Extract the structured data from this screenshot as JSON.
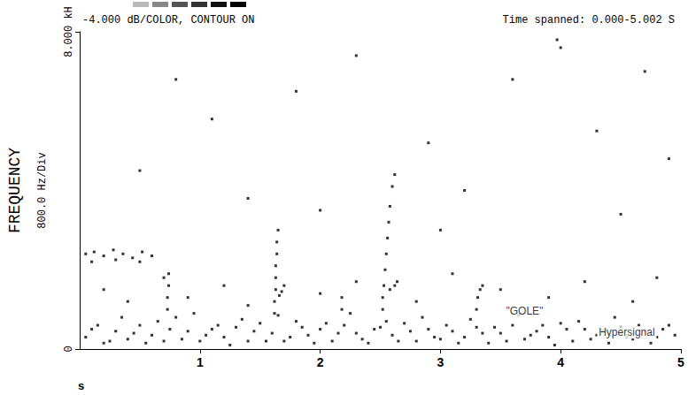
{
  "chart_data": {
    "type": "scatter",
    "title": "-4.000 dB/COLOR, CONTOUR ON",
    "subtitle": "Time spanned: 0.000-5.002 S",
    "y_label": "FREQUENCY",
    "y_sublabel": "800.0 Hz/Div",
    "x_label": "s",
    "color": "#000000",
    "marker": "square",
    "grid": false,
    "xlim": [
      0,
      5
    ],
    "xticks": [
      1,
      2,
      3,
      4,
      5
    ],
    "ylim": [
      0,
      8
    ],
    "yticks": [
      0,
      {
        "value": 8,
        "label": "8.000 kH"
      }
    ],
    "annotations": [
      {
        "text": "\"GOLE\"",
        "x": 3.7,
        "y": 0.95
      },
      {
        "text": "Hypersignal",
        "x": 4.55,
        "y": 0.42
      }
    ],
    "x": [
      0.05,
      0.15,
      0.25,
      0.35,
      0.45,
      0.55,
      0.65,
      0.75,
      0.85,
      0.95,
      1.05,
      1.15,
      1.25,
      1.35,
      1.45,
      1.55,
      1.65,
      1.75,
      1.85,
      1.95,
      2.05,
      2.15,
      2.25,
      2.35,
      2.45,
      2.55,
      2.65,
      2.75,
      2.85,
      2.95,
      3.05,
      3.15,
      3.25,
      3.35,
      3.45,
      3.55,
      3.65,
      3.75,
      3.85,
      3.95,
      4.05,
      4.15,
      4.25,
      4.35,
      4.45,
      4.55,
      4.65,
      4.75,
      4.85,
      4.95,
      0.1,
      0.2,
      0.3,
      0.4,
      0.5,
      0.6,
      0.7,
      0.8,
      0.9,
      1.0,
      1.1,
      1.2,
      1.3,
      1.4,
      1.5,
      1.6,
      1.7,
      1.8,
      1.9,
      2.0,
      2.1,
      2.2,
      2.3,
      2.4,
      2.5,
      2.6,
      2.7,
      2.8,
      2.9,
      3.0,
      3.1,
      3.2,
      3.3,
      3.4,
      3.5,
      3.6,
      3.7,
      3.8,
      3.9,
      4.0,
      4.1,
      4.2,
      4.3,
      4.4,
      4.5,
      4.6,
      4.7,
      4.8,
      4.9,
      0.05,
      0.12,
      0.2,
      0.28,
      0.36,
      0.44,
      0.52,
      0.6,
      0.1,
      0.3,
      0.5,
      0.2,
      0.4,
      0.7,
      0.9,
      1.2,
      1.4,
      2.0,
      2.3,
      2.8,
      3.1,
      3.5,
      3.9,
      4.2,
      4.6,
      4.8,
      0.73,
      0.73,
      0.74,
      0.74,
      1.62,
      1.62,
      1.63,
      1.63,
      1.63,
      1.64,
      1.64,
      1.65,
      1.68,
      1.7,
      1.66,
      2.18,
      2.18,
      2.52,
      2.52,
      2.53,
      2.54,
      2.55,
      2.56,
      2.57,
      2.58,
      2.6,
      2.62,
      2.58,
      2.62,
      2.64,
      3.3,
      3.31,
      3.33,
      3.35,
      0.5,
      1.1,
      1.8,
      2.3,
      2.9,
      3.2,
      3.6,
      3.97,
      4.0,
      4.3,
      4.7,
      4.9,
      0.8,
      1.4,
      2.0,
      3.0,
      4.5
    ],
    "values": [
      0.3,
      0.6,
      0.2,
      0.8,
      0.4,
      0.15,
      0.7,
      0.5,
      0.25,
      0.9,
      0.35,
      0.6,
      0.1,
      0.75,
      0.45,
      0.2,
      0.85,
      0.3,
      0.55,
      0.15,
      0.65,
      0.4,
      0.9,
      0.25,
      0.5,
      0.7,
      0.2,
      0.45,
      0.8,
      0.3,
      0.6,
      0.15,
      0.75,
      0.4,
      0.55,
      0.2,
      0.85,
      0.35,
      0.6,
      0.1,
      0.5,
      0.7,
      0.25,
      0.45,
      0.8,
      0.3,
      0.6,
      0.15,
      0.5,
      0.35,
      0.5,
      0.15,
      0.45,
      0.25,
      0.6,
      0.35,
      0.2,
      0.8,
      0.45,
      0.2,
      0.5,
      0.3,
      0.55,
      0.2,
      0.65,
      0.4,
      0.2,
      0.7,
      0.35,
      0.5,
      0.2,
      0.6,
      0.4,
      0.15,
      0.55,
      0.35,
      0.65,
      0.2,
      0.5,
      0.25,
      0.45,
      0.3,
      0.55,
      0.15,
      0.4,
      0.6,
      0.25,
      0.45,
      0.3,
      0.65,
      0.2,
      0.5,
      0.35,
      0.15,
      0.55,
      0.25,
      0.45,
      0.3,
      0.6,
      2.4,
      2.45,
      2.35,
      2.5,
      2.4,
      2.3,
      2.45,
      2.35,
      2.2,
      2.25,
      2.2,
      1.5,
      1.2,
      1.8,
      1.3,
      1.6,
      1.1,
      1.4,
      1.7,
      1.2,
      1.9,
      1.5,
      1.3,
      1.7,
      1.2,
      1.8,
      1.0,
      1.3,
      1.6,
      1.9,
      0.9,
      1.2,
      1.5,
      1.8,
      2.1,
      2.4,
      2.7,
      3.0,
      1.45,
      1.6,
      1.35,
      1.0,
      1.3,
      1.0,
      1.3,
      1.6,
      2.0,
      2.4,
      2.8,
      3.2,
      3.6,
      4.1,
      4.4,
      1.5,
      1.6,
      1.7,
      1.0,
      1.3,
      1.5,
      1.6,
      4.5,
      5.8,
      6.5,
      7.4,
      5.2,
      4.0,
      6.8,
      7.8,
      7.6,
      5.5,
      7.0,
      4.8,
      6.8,
      3.8,
      3.5,
      3.0,
      3.4
    ]
  }
}
